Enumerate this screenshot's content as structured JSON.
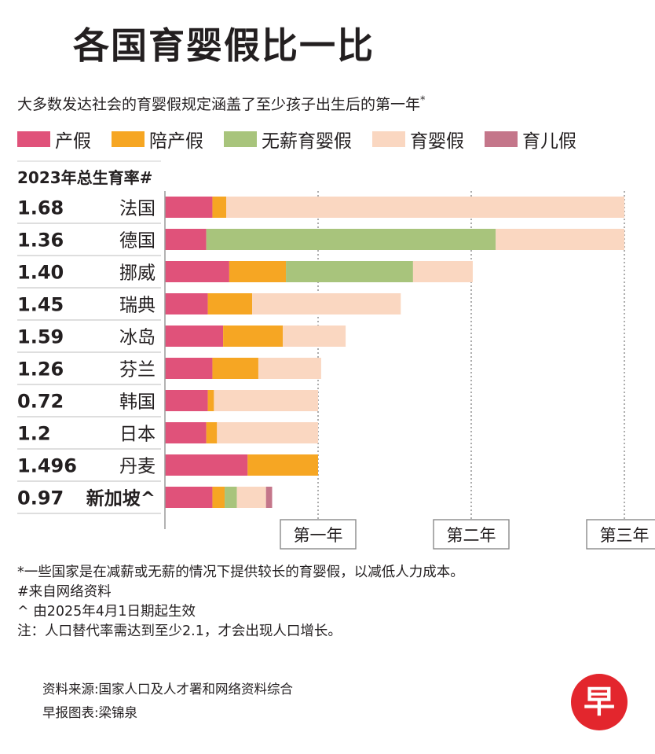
{
  "title": "各国育婴假比一比",
  "subtitle": "大多数发达社会的育婴假规定涵盖了至少孩子出生后的第一年",
  "subtitle_mark": "*",
  "legend": [
    {
      "label": "产假",
      "color": "#e0527a"
    },
    {
      "label": "陪产假",
      "color": "#f6a623"
    },
    {
      "label": "无薪育婴假",
      "color": "#a8c47c"
    },
    {
      "label": "育婴假",
      "color": "#fad7c1"
    },
    {
      "label": "育儿假",
      "color": "#c4768a"
    }
  ],
  "rate_header": "2023年总生育率#",
  "chart_data": {
    "type": "bar",
    "orientation": "horizontal",
    "stacked": true,
    "unit": "years",
    "xlim": [
      0,
      3
    ],
    "x_ticks": [
      {
        "value": 1,
        "label": "第一年"
      },
      {
        "value": 2,
        "label": "第二年"
      },
      {
        "value": 3,
        "label": "第三年"
      }
    ],
    "series_names": [
      "产假",
      "陪产假",
      "无薪育婴假",
      "育婴假",
      "育儿假"
    ],
    "rows": [
      {
        "rate": "1.68",
        "country": "法国",
        "segments": [
          0.31,
          0.09,
          0,
          2.6,
          0
        ]
      },
      {
        "rate": "1.36",
        "country": "德国",
        "segments": [
          0.27,
          0,
          1.89,
          0.84,
          0
        ]
      },
      {
        "rate": "1.40",
        "country": "挪威",
        "segments": [
          0.42,
          0.37,
          0.83,
          0.39,
          0
        ]
      },
      {
        "rate": "1.45",
        "country": "瑞典",
        "segments": [
          0.28,
          0.29,
          0,
          0.97,
          0
        ]
      },
      {
        "rate": "1.59",
        "country": "冰岛",
        "segments": [
          0.38,
          0.39,
          0,
          0.41,
          0
        ]
      },
      {
        "rate": "1.26",
        "country": "芬兰",
        "segments": [
          0.31,
          0.3,
          0,
          0.41,
          0
        ]
      },
      {
        "rate": "0.72",
        "country": "韩国",
        "segments": [
          0.28,
          0.04,
          0,
          0.68,
          0
        ]
      },
      {
        "rate": "1.2",
        "country": "日本",
        "segments": [
          0.27,
          0.07,
          0,
          0.66,
          0
        ]
      },
      {
        "rate": "1.496",
        "country": "丹麦",
        "segments": [
          0.54,
          0.46,
          0,
          0,
          0
        ]
      },
      {
        "rate": "0.97",
        "country": "新加坡^",
        "segments": [
          0.31,
          0.08,
          0.08,
          0.19,
          0.04
        ],
        "bold": true
      }
    ]
  },
  "notes": [
    "*一些国家是在减薪或无薪的情况下提供较长的育婴假，以减低人力成本。",
    "#来自网络资料",
    "^ 由2025年4月1日期起生效",
    "注：人口替代率需达到至少2.1，才会出现人口增长。"
  ],
  "source": [
    "资料来源:国家人口及人才署和网络资料综合",
    "早报图表:梁锦泉"
  ],
  "logo": {
    "text": "早",
    "color": "#e3262d"
  }
}
